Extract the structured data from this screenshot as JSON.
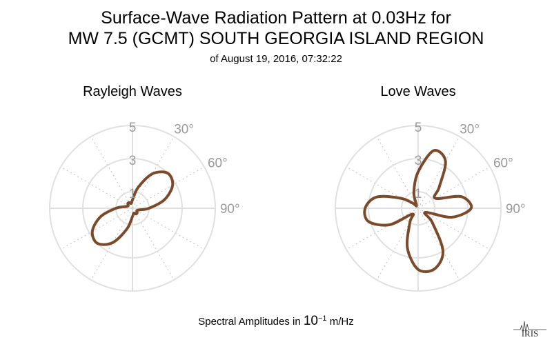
{
  "title": {
    "line1": "Surface-Wave Radiation Pattern at 0.03Hz for",
    "line2": "MW 7.5 (GCMT) SOUTH GEORGIA ISLAND REGION",
    "line3": "of August 19, 2016, 07:32:22"
  },
  "footer": {
    "prefix": "Spectral Amplitudes in ",
    "base": "10",
    "exponent": "−1",
    "unit": " m/Hz"
  },
  "logo_text": "IRIS",
  "colors": {
    "curve": "#7b4a2b",
    "grid": "#e0e0e0",
    "spoke": "#c8c8c8",
    "label": "#9a9a9a"
  },
  "chart_data": [
    {
      "type": "polar-line",
      "title": "Rayleigh Waves",
      "radial_ticks": [
        1,
        3,
        5
      ],
      "angle_ticks": [
        "30°",
        "60°",
        "90°"
      ],
      "rmax": 5,
      "series": [
        {
          "theta_deg": [
            0,
            15,
            30,
            45,
            60,
            75,
            90,
            105,
            120,
            135,
            150,
            165,
            180,
            195,
            210,
            225,
            240,
            255,
            270,
            285,
            300,
            315,
            330,
            345
          ],
          "r": [
            0.5,
            1.3,
            2.4,
            3.0,
            2.8,
            2.0,
            1.0,
            0.4,
            0.3,
            0.4,
            0.4,
            0.3,
            0.5,
            1.3,
            2.4,
            3.0,
            2.8,
            2.0,
            1.0,
            0.4,
            0.3,
            0.4,
            0.4,
            0.3
          ]
        }
      ]
    },
    {
      "type": "polar-line",
      "title": "Love Waves",
      "radial_ticks": [
        1,
        3,
        5
      ],
      "angle_ticks": [
        "30°",
        "60°",
        "90°"
      ],
      "rmax": 5,
      "series": [
        {
          "theta_deg": [
            0,
            15,
            30,
            45,
            60,
            75,
            90,
            105,
            120,
            135,
            150,
            165,
            180,
            195,
            210,
            225,
            240,
            255,
            270,
            285,
            300,
            315,
            330,
            345
          ],
          "r": [
            2.2,
            3.6,
            3.3,
            1.8,
            1.2,
            2.7,
            3.2,
            2.1,
            0.5,
            1.2,
            3.0,
            3.8,
            3.7,
            2.5,
            1.0,
            0.5,
            2.0,
            3.1,
            3.2,
            2.6,
            1.2,
            0.4,
            0.2,
            1.0
          ]
        }
      ]
    }
  ]
}
